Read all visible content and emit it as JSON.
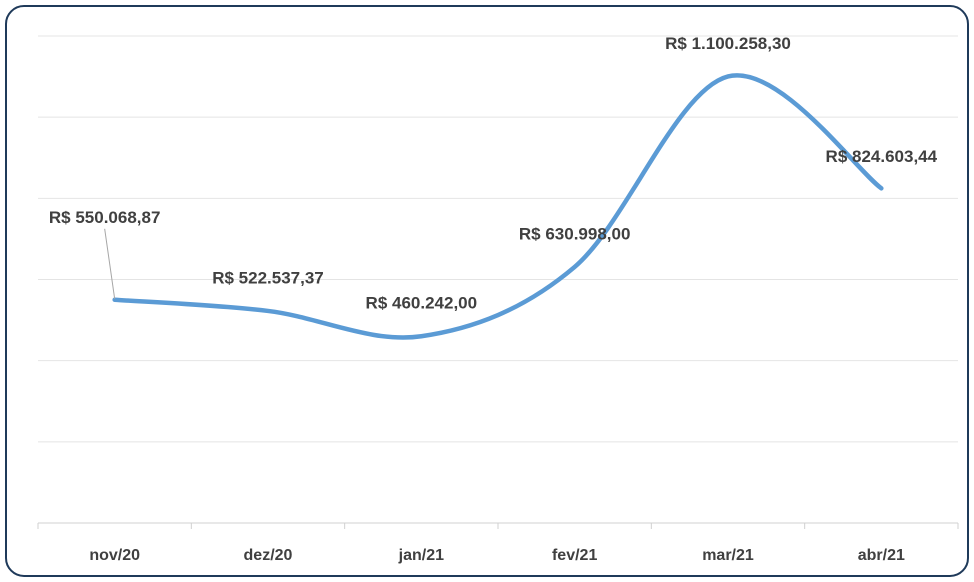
{
  "chart_data": {
    "type": "line",
    "categories": [
      "nov/20",
      "dez/20",
      "jan/21",
      "fev/21",
      "mar/21",
      "abr/21"
    ],
    "series": [
      {
        "color": "#5b9bd5",
        "values": [
          550068.87,
          522537.37,
          460242.0,
          630998.0,
          1100258.3,
          824603.44
        ],
        "value_labels": [
          "R$ 550.068,87",
          "R$ 522.537,37",
          "R$ 460.242,00",
          "R$ 630.998,00",
          "R$ 1.100.258,30",
          "R$ 824.603,44"
        ]
      }
    ],
    "ylim": [
      0,
      1200000
    ],
    "yticks": [
      0,
      200000,
      400000,
      600000,
      800000,
      1000000,
      1200000
    ],
    "grid": true
  }
}
